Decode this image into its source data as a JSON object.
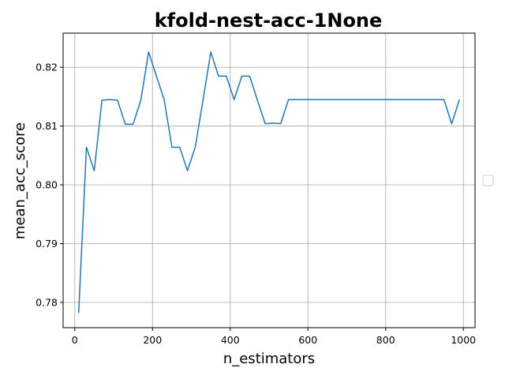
{
  "chart_data": {
    "type": "line",
    "title": "kfold-nest-acc-1None",
    "xlabel": "n_estimators",
    "ylabel": "mean_acc_score",
    "xlim": [
      -30,
      1030
    ],
    "ylim": [
      0.7757,
      0.8258
    ],
    "xticks": [
      0,
      200,
      400,
      600,
      800,
      1000
    ],
    "yticks": [
      0.78,
      0.79,
      0.8,
      0.81,
      0.82
    ],
    "xtick_labels": [
      "0",
      "200",
      "400",
      "600",
      "800",
      "1000"
    ],
    "ytick_labels": [
      "0.78",
      "0.79",
      "0.80",
      "0.81",
      "0.82"
    ],
    "grid": true,
    "legend": {
      "placement": "center-right outside",
      "entries": []
    },
    "series": [
      {
        "color": "#1f77b4",
        "x": [
          10,
          30,
          50,
          70,
          90,
          110,
          130,
          150,
          170,
          190,
          210,
          230,
          250,
          270,
          290,
          310,
          330,
          350,
          370,
          390,
          410,
          430,
          450,
          470,
          490,
          510,
          530,
          550,
          570,
          590,
          610,
          630,
          650,
          670,
          690,
          710,
          730,
          750,
          770,
          790,
          810,
          830,
          850,
          870,
          890,
          910,
          930,
          950,
          970,
          990
        ],
        "y": [
          0.7782,
          0.8064,
          0.8024,
          0.8144,
          0.8145,
          0.8144,
          0.8103,
          0.8103,
          0.8144,
          0.8226,
          0.8185,
          0.8145,
          0.8064,
          0.8064,
          0.8024,
          0.8064,
          0.8144,
          0.8226,
          0.8185,
          0.8185,
          0.8145,
          0.8185,
          0.8185,
          0.8144,
          0.8104,
          0.8105,
          0.8104,
          0.8145,
          0.8145,
          0.8145,
          0.8145,
          0.8145,
          0.8145,
          0.8145,
          0.8145,
          0.8145,
          0.8145,
          0.8145,
          0.8145,
          0.8145,
          0.8145,
          0.8145,
          0.8145,
          0.8145,
          0.8145,
          0.8145,
          0.8145,
          0.8145,
          0.8104,
          0.8145
        ]
      }
    ]
  }
}
